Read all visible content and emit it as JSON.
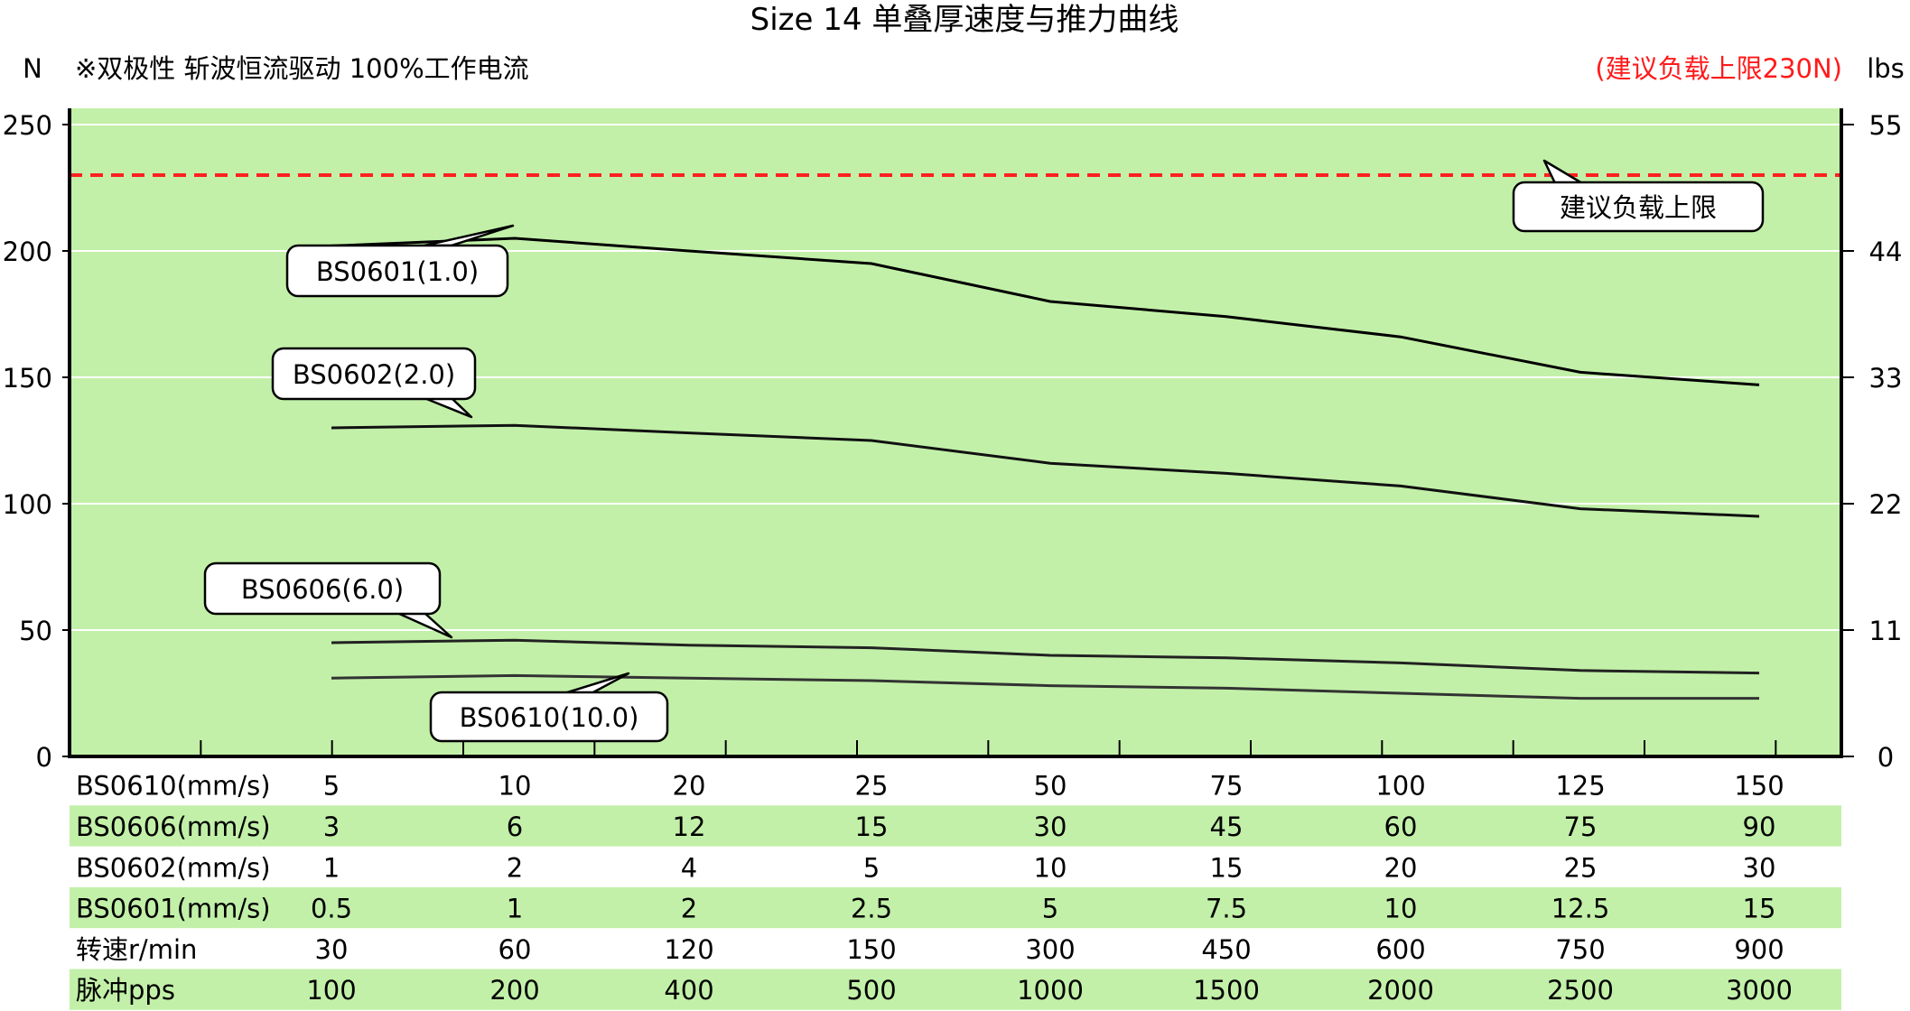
{
  "chart_data": {
    "type": "line",
    "title": "Size 14 单叠厚速度与推力曲线",
    "subtitle": "※双极性 斩波恒流驱动 100%工作电流",
    "left_axis_unit": "N",
    "right_axis_unit": "lbs",
    "limit_note": "(建议负载上限230N)",
    "ylim": [
      0,
      250
    ],
    "y_ticks": [
      "0",
      "50",
      "100",
      "150",
      "200",
      "250"
    ],
    "y_right_ticks": [
      "0",
      "11",
      "22",
      "33",
      "44",
      "55"
    ],
    "grid": "horizontal",
    "plot_background": "#c2f0a8",
    "x_positions": [
      5,
      10,
      20,
      25,
      50,
      75,
      100,
      125,
      150
    ],
    "limit_line": {
      "value": 230,
      "label": "建议负载上限",
      "color": "#ff2020"
    },
    "series": [
      {
        "name": "BS0601(1.0)",
        "values": [
          202,
          205,
          200,
          195,
          180,
          174,
          166,
          152,
          147
        ]
      },
      {
        "name": "BS0602(2.0)",
        "values": [
          130,
          131,
          128,
          125,
          116,
          112,
          107,
          98,
          95
        ]
      },
      {
        "name": "BS0606(6.0)",
        "values": [
          45,
          46,
          44,
          43,
          40,
          39,
          37,
          34,
          33
        ]
      },
      {
        "name": "BS0610(10.0)",
        "values": [
          31,
          32,
          31,
          30,
          28,
          27,
          25,
          23,
          23
        ]
      }
    ],
    "table": [
      {
        "label": "BS0610(mm/s)",
        "values": [
          "5",
          "10",
          "20",
          "25",
          "50",
          "75",
          "100",
          "125",
          "150"
        ]
      },
      {
        "label": "BS0606(mm/s)",
        "values": [
          "3",
          "6",
          "12",
          "15",
          "30",
          "45",
          "60",
          "75",
          "90"
        ]
      },
      {
        "label": "BS0602(mm/s)",
        "values": [
          "1",
          "2",
          "4",
          "5",
          "10",
          "15",
          "20",
          "25",
          "30"
        ]
      },
      {
        "label": "BS0601(mm/s)",
        "values": [
          "0.5",
          "1",
          "2",
          "2.5",
          "5",
          "7.5",
          "10",
          "12.5",
          "15"
        ]
      },
      {
        "label": "转速r/min",
        "values": [
          "30",
          "60",
          "120",
          "150",
          "300",
          "450",
          "600",
          "750",
          "900"
        ]
      },
      {
        "label": "脉冲pps",
        "values": [
          "100",
          "200",
          "400",
          "500",
          "1000",
          "1500",
          "2000",
          "2500",
          "3000"
        ]
      }
    ]
  }
}
